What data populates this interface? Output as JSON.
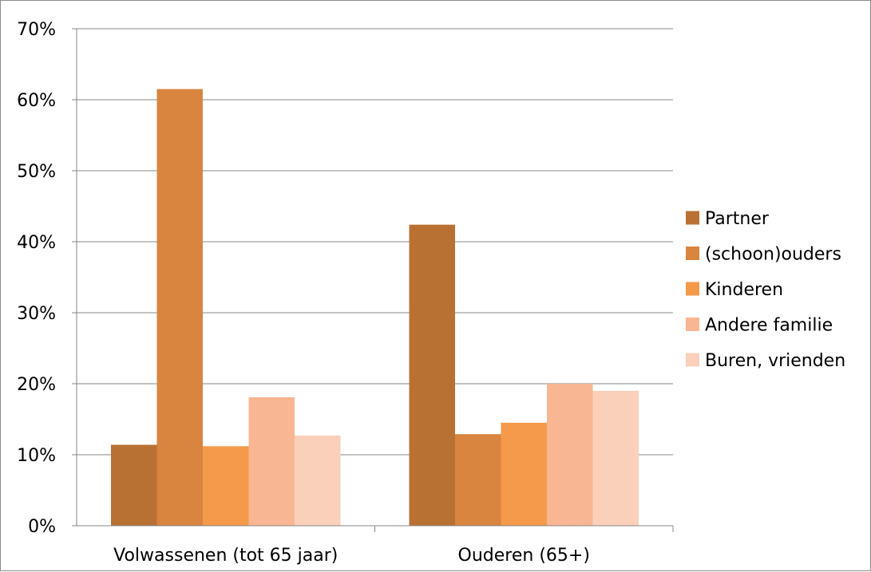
{
  "chart_data": {
    "type": "bar",
    "categories": [
      "Volwassenen (tot 65 jaar)",
      "Ouderen (65+)"
    ],
    "series": [
      {
        "name": "Partner",
        "values": [
          11.4,
          42.4
        ],
        "color": "#b97133"
      },
      {
        "name": "(schoon)ouders",
        "values": [
          61.5,
          12.9
        ],
        "color": "#d9843f"
      },
      {
        "name": "Kinderen",
        "values": [
          11.2,
          14.5
        ],
        "color": "#f59a4b"
      },
      {
        "name": "Andere familie",
        "values": [
          18.1,
          20.0
        ],
        "color": "#f8b692"
      },
      {
        "name": "Buren, vrienden",
        "values": [
          12.7,
          19.0
        ],
        "color": "#fad0bb"
      }
    ],
    "y_ticks": [
      "0%",
      "10%",
      "20%",
      "30%",
      "40%",
      "50%",
      "60%",
      "70%"
    ],
    "ylim": [
      0,
      70
    ],
    "grid": true,
    "legend_position": "right"
  }
}
